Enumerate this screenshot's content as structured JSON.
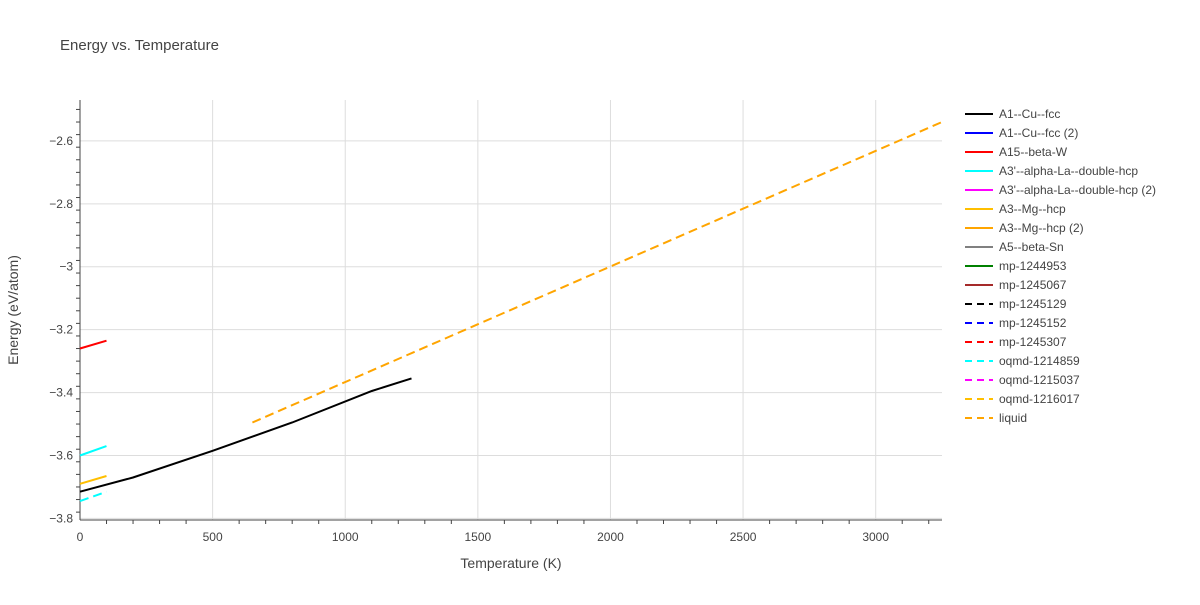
{
  "chart_data": {
    "type": "line",
    "title": "Energy vs. Temperature",
    "xlabel": "Temperature (K)",
    "ylabel": "Energy (eV/atom)",
    "xlim": [
      0,
      3250
    ],
    "ylim": [
      -3.805,
      -2.47
    ],
    "x_ticks": [
      0,
      500,
      1000,
      1500,
      2000,
      2500,
      3000
    ],
    "x_tick_labels": [
      "0",
      "500",
      "1000",
      "1500",
      "2000",
      "2500",
      "3000"
    ],
    "y_ticks": [
      -3.8,
      -3.6,
      -3.4,
      -3.2,
      -3.0,
      -2.8,
      -2.6
    ],
    "y_tick_labels": [
      "−3.8",
      "−3.6",
      "−3.4",
      "−3.2",
      "−3",
      "−2.8",
      "−2.6"
    ],
    "grid": true,
    "legend_position": "right",
    "series": [
      {
        "name": "A1--Cu--fcc",
        "color": "#000000",
        "dash": "solid",
        "x": [
          0,
          200,
          500,
          800,
          1100,
          1250
        ],
        "y": [
          -3.715,
          -3.67,
          -3.585,
          -3.495,
          -3.395,
          -3.355
        ]
      },
      {
        "name": "A1--Cu--fcc (2)",
        "color": "#0000ff",
        "dash": "solid",
        "x": [],
        "y": []
      },
      {
        "name": "A15--beta-W",
        "color": "#ff0000",
        "dash": "solid",
        "x": [
          0,
          100
        ],
        "y": [
          -3.26,
          -3.235
        ]
      },
      {
        "name": "A3'--alpha-La--double-hcp",
        "color": "#00ffff",
        "dash": "solid",
        "x": [
          0,
          100
        ],
        "y": [
          -3.6,
          -3.57
        ]
      },
      {
        "name": "A3'--alpha-La--double-hcp (2)",
        "color": "#ff00ff",
        "dash": "solid",
        "x": [],
        "y": []
      },
      {
        "name": "A3--Mg--hcp",
        "color": "#ffbf00",
        "dash": "solid",
        "x": [
          0,
          100
        ],
        "y": [
          -3.69,
          -3.665
        ]
      },
      {
        "name": "A3--Mg--hcp (2)",
        "color": "#ffa500",
        "dash": "solid",
        "x": [],
        "y": []
      },
      {
        "name": "A5--beta-Sn",
        "color": "#808080",
        "dash": "solid",
        "x": [],
        "y": []
      },
      {
        "name": "mp-1244953",
        "color": "#008000",
        "dash": "solid",
        "x": [],
        "y": []
      },
      {
        "name": "mp-1245067",
        "color": "#a52a2a",
        "dash": "solid",
        "x": [],
        "y": []
      },
      {
        "name": "mp-1245129",
        "color": "#000000",
        "dash": "dash",
        "x": [],
        "y": []
      },
      {
        "name": "mp-1245152",
        "color": "#0000ff",
        "dash": "dash",
        "x": [],
        "y": []
      },
      {
        "name": "mp-1245307",
        "color": "#ff0000",
        "dash": "dash",
        "x": [],
        "y": []
      },
      {
        "name": "oqmd-1214859",
        "color": "#00ffff",
        "dash": "dash",
        "x": [
          0,
          100
        ],
        "y": [
          -3.745,
          -3.715
        ]
      },
      {
        "name": "oqmd-1215037",
        "color": "#ff00ff",
        "dash": "dash",
        "x": [],
        "y": []
      },
      {
        "name": "oqmd-1216017",
        "color": "#ffbf00",
        "dash": "dash",
        "x": [],
        "y": []
      },
      {
        "name": "liquid",
        "color": "#ffa500",
        "dash": "dash",
        "x": [
          650,
          3250
        ],
        "y": [
          -3.495,
          -2.54
        ]
      }
    ]
  }
}
